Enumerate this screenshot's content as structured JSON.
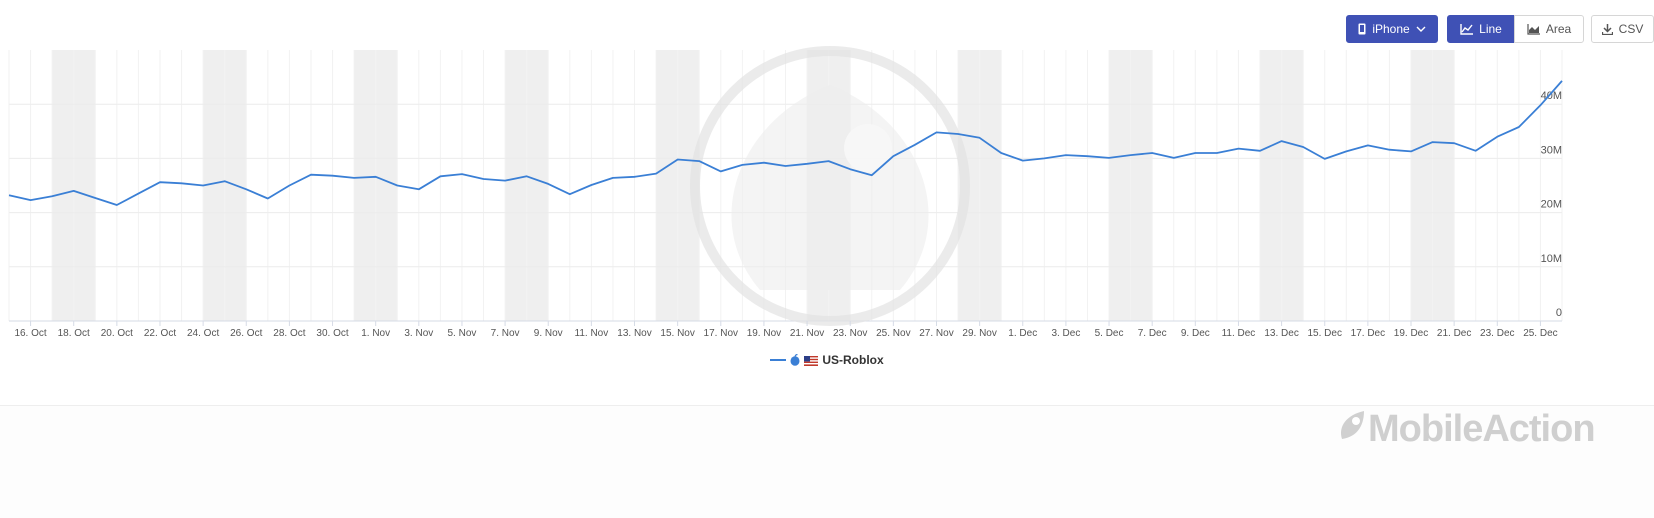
{
  "toolbar": {
    "device_label": "iPhone",
    "line_label": "Line",
    "area_label": "Area",
    "csv_label": "CSV"
  },
  "legend": {
    "series_label": "US-Roblox"
  },
  "watermark": {
    "brand": "MobileAction"
  },
  "colors": {
    "series": "#3a7fd5",
    "accent": "#3f51b5",
    "weekend_band": "#efefef",
    "grid": "#ececec"
  },
  "chart_data": {
    "type": "line",
    "title": "",
    "xlabel": "",
    "ylabel": "",
    "ylim": [
      0,
      50000000
    ],
    "y_ticks": [
      "0",
      "10M",
      "20M",
      "30M",
      "40M"
    ],
    "x_tick_labels": [
      "16. Oct",
      "18. Oct",
      "20. Oct",
      "22. Oct",
      "24. Oct",
      "26. Oct",
      "28. Oct",
      "30. Oct",
      "1. Nov",
      "3. Nov",
      "5. Nov",
      "7. Nov",
      "9. Nov",
      "11. Nov",
      "13. Nov",
      "15. Nov",
      "17. Nov",
      "19. Nov",
      "21. Nov",
      "23. Nov",
      "25. Nov",
      "27. Nov",
      "29. Nov",
      "1. Dec",
      "3. Dec",
      "5. Dec",
      "7. Dec",
      "9. Dec",
      "11. Dec",
      "13. Dec",
      "15. Dec",
      "17. Dec",
      "19. Dec",
      "21. Dec",
      "23. Dec",
      "25. Dec"
    ],
    "x": [
      "2020-10-15",
      "2020-10-16",
      "2020-10-17",
      "2020-10-18",
      "2020-10-19",
      "2020-10-20",
      "2020-10-21",
      "2020-10-22",
      "2020-10-23",
      "2020-10-24",
      "2020-10-25",
      "2020-10-26",
      "2020-10-27",
      "2020-10-28",
      "2020-10-29",
      "2020-10-30",
      "2020-10-31",
      "2020-11-01",
      "2020-11-02",
      "2020-11-03",
      "2020-11-04",
      "2020-11-05",
      "2020-11-06",
      "2020-11-07",
      "2020-11-08",
      "2020-11-09",
      "2020-11-10",
      "2020-11-11",
      "2020-11-12",
      "2020-11-13",
      "2020-11-14",
      "2020-11-15",
      "2020-11-16",
      "2020-11-17",
      "2020-11-18",
      "2020-11-19",
      "2020-11-20",
      "2020-11-21",
      "2020-11-22",
      "2020-11-23",
      "2020-11-24",
      "2020-11-25",
      "2020-11-26",
      "2020-11-27",
      "2020-11-28",
      "2020-11-29",
      "2020-11-30",
      "2020-12-01",
      "2020-12-02",
      "2020-12-03",
      "2020-12-04",
      "2020-12-05",
      "2020-12-06",
      "2020-12-07",
      "2020-12-08",
      "2020-12-09",
      "2020-12-10",
      "2020-12-11",
      "2020-12-12",
      "2020-12-13",
      "2020-12-14",
      "2020-12-15",
      "2020-12-16",
      "2020-12-17",
      "2020-12-18",
      "2020-12-19",
      "2020-12-20",
      "2020-12-21",
      "2020-12-22",
      "2020-12-23",
      "2020-12-24",
      "2020-12-25",
      "2020-12-26"
    ],
    "shaded_ranges": [
      [
        "2020-10-17",
        "2020-10-19"
      ],
      [
        "2020-10-24",
        "2020-10-26"
      ],
      [
        "2020-10-31",
        "2020-11-02"
      ],
      [
        "2020-11-07",
        "2020-11-09"
      ],
      [
        "2020-11-14",
        "2020-11-16"
      ],
      [
        "2020-11-21",
        "2020-11-23"
      ],
      [
        "2020-11-28",
        "2020-11-30"
      ],
      [
        "2020-12-05",
        "2020-12-07"
      ],
      [
        "2020-12-12",
        "2020-12-14"
      ],
      [
        "2020-12-19",
        "2020-12-21"
      ]
    ],
    "series": [
      {
        "name": "US-Roblox",
        "values": [
          23.2,
          22.3,
          23.0,
          24.0,
          22.7,
          21.4,
          23.5,
          25.6,
          25.4,
          25.0,
          25.8,
          24.3,
          22.6,
          25.0,
          27.0,
          26.8,
          26.4,
          26.6,
          25.0,
          24.3,
          26.7,
          27.1,
          26.2,
          25.9,
          26.7,
          25.3,
          23.4,
          25.1,
          26.4,
          26.6,
          27.2,
          29.8,
          29.5,
          27.6,
          28.8,
          29.2,
          28.6,
          29.0,
          29.5,
          28.0,
          26.9,
          30.4,
          32.5,
          34.8,
          34.5,
          33.8,
          31.0,
          29.6,
          30.0,
          30.6,
          30.4,
          30.1,
          30.6,
          31.0,
          30.1,
          31.0,
          31.0,
          31.8,
          31.4,
          33.2,
          32.1,
          29.9,
          31.3,
          32.4,
          31.6,
          31.3,
          33.0,
          32.8,
          31.4,
          34.0,
          35.8,
          39.8,
          44.3
        ]
      }
    ]
  }
}
